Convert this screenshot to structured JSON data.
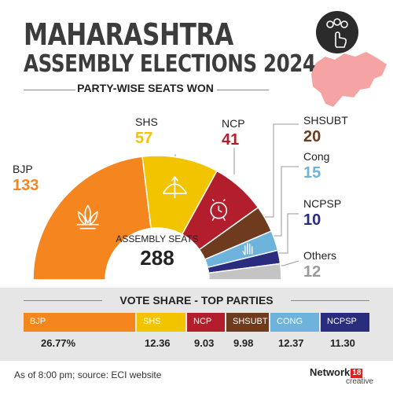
{
  "header": {
    "title_line1": "MAHARASHTRA",
    "title_line2": "ASSEMBLY ELECTIONS 2024",
    "subtitle": "PARTY-WISE SEATS WON"
  },
  "chart_data": [
    {
      "type": "pie",
      "title": "PARTY-WISE SEATS WON",
      "categories": [
        "BJP",
        "SHS",
        "NCP",
        "SHSUBT",
        "Cong",
        "NCPSP",
        "Others"
      ],
      "values": [
        133,
        57,
        41,
        20,
        15,
        10,
        12
      ],
      "colors": [
        "#f5861f",
        "#f2c400",
        "#b31e2c",
        "#6e3b1f",
        "#6db3dc",
        "#2a2c7d",
        "#c4c4c4"
      ],
      "center_label": "ASSEMBLY SEATS",
      "center_value": "288"
    },
    {
      "type": "table",
      "title": "VOTE SHARE - TOP PARTIES",
      "categories": [
        "BJP",
        "SHS",
        "NCP",
        "SHSUBT",
        "CONG",
        "NCPSP"
      ],
      "values": [
        26.77,
        12.36,
        9.03,
        9.98,
        12.37,
        11.3
      ],
      "value_labels": [
        "26.77%",
        "12.36",
        "9.03",
        "9.98",
        "12.37",
        "11.30"
      ],
      "colors": [
        "#f5861f",
        "#f2c400",
        "#b31e2c",
        "#6e3b1f",
        "#6db3dc",
        "#2a2c7d"
      ]
    }
  ],
  "footer": {
    "source": "As of 8:00 pm; source: ECI website",
    "brand_name": "Network",
    "brand_number": "18",
    "brand_sub": "creative"
  },
  "icons": [
    "voter-hand-icon",
    "maharashtra-map-icon",
    "lotus-icon",
    "bow-arrow-icon",
    "clock-icon",
    "hand-icon"
  ]
}
